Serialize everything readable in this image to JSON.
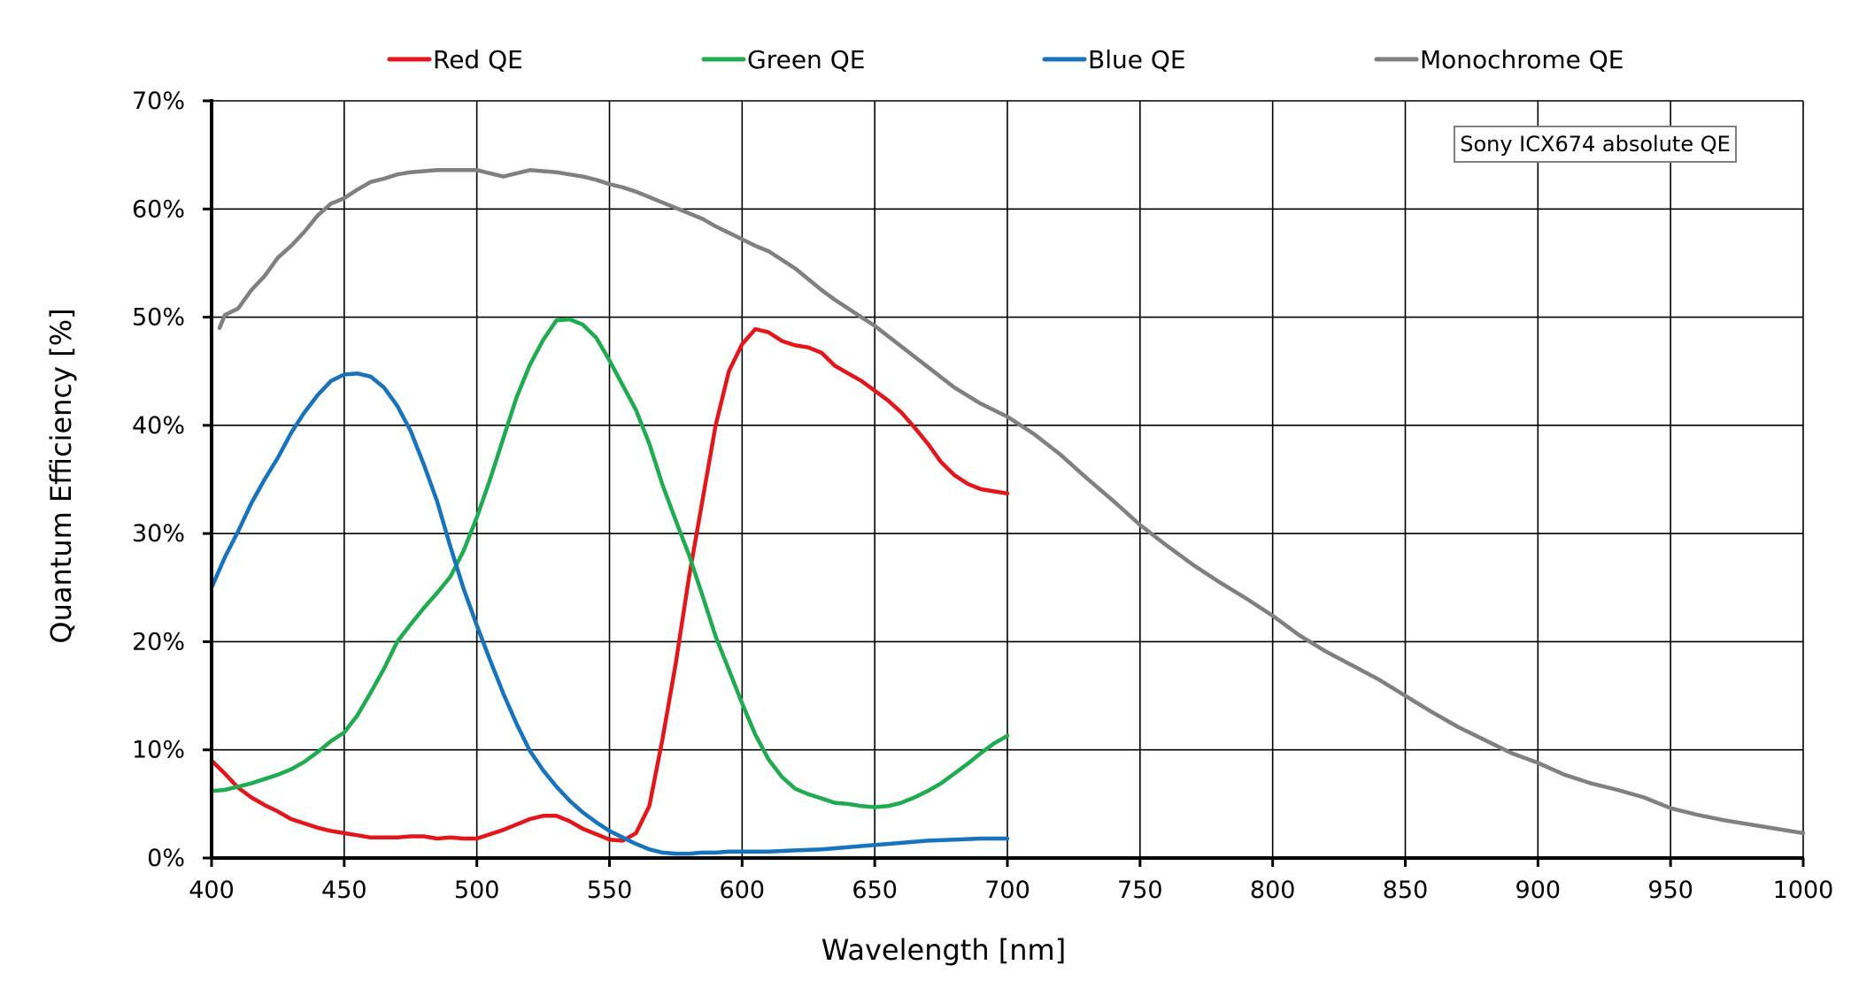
{
  "chart_data": {
    "type": "line",
    "title": "",
    "xlabel": "Wavelength [nm]",
    "ylabel": "Quantum Efficiency [%]",
    "xlim": [
      400,
      1000
    ],
    "ylim": [
      0,
      70
    ],
    "x_ticks": [
      400,
      450,
      500,
      550,
      600,
      650,
      700,
      750,
      800,
      850,
      900,
      950,
      1000
    ],
    "x_tick_labels": [
      "400",
      "450",
      "500",
      "550",
      "600",
      "650",
      "700",
      "750",
      "800",
      "850",
      "900",
      "950",
      "1000"
    ],
    "y_ticks": [
      0,
      10,
      20,
      30,
      40,
      50,
      60,
      70
    ],
    "y_tick_labels": [
      "0%",
      "10%",
      "20%",
      "30%",
      "40%",
      "50%",
      "60%",
      "70%"
    ],
    "grid": true,
    "legend_position": "top",
    "annotation": "Sony ICX674 absolute QE",
    "series": [
      {
        "name": "Red QE",
        "color": "#e3161b",
        "points": [
          [
            400,
            9
          ],
          [
            405,
            7.8
          ],
          [
            410,
            6.5
          ],
          [
            415,
            5.6
          ],
          [
            420,
            4.9
          ],
          [
            425,
            4.3
          ],
          [
            430,
            3.6
          ],
          [
            435,
            3.2
          ],
          [
            440,
            2.8
          ],
          [
            445,
            2.5
          ],
          [
            450,
            2.3
          ],
          [
            455,
            2.1
          ],
          [
            460,
            1.9
          ],
          [
            465,
            1.9
          ],
          [
            470,
            1.9
          ],
          [
            475,
            2.0
          ],
          [
            480,
            2.0
          ],
          [
            485,
            1.8
          ],
          [
            490,
            1.9
          ],
          [
            495,
            1.8
          ],
          [
            500,
            1.8
          ],
          [
            505,
            2.2
          ],
          [
            510,
            2.6
          ],
          [
            515,
            3.1
          ],
          [
            520,
            3.6
          ],
          [
            525,
            3.9
          ],
          [
            530,
            3.9
          ],
          [
            535,
            3.4
          ],
          [
            540,
            2.7
          ],
          [
            545,
            2.2
          ],
          [
            550,
            1.7
          ],
          [
            555,
            1.6
          ],
          [
            560,
            2.3
          ],
          [
            565,
            4.8
          ],
          [
            570,
            11
          ],
          [
            575,
            18
          ],
          [
            580,
            26
          ],
          [
            585,
            33
          ],
          [
            590,
            40
          ],
          [
            595,
            45
          ],
          [
            600,
            47.5
          ],
          [
            605,
            48.9
          ],
          [
            610,
            48.6
          ],
          [
            615,
            47.8
          ],
          [
            620,
            47.4
          ],
          [
            625,
            47.2
          ],
          [
            630,
            46.7
          ],
          [
            635,
            45.5
          ],
          [
            640,
            44.8
          ],
          [
            645,
            44.1
          ],
          [
            650,
            43.2
          ],
          [
            655,
            42.3
          ],
          [
            660,
            41.2
          ],
          [
            665,
            39.8
          ],
          [
            670,
            38.3
          ],
          [
            675,
            36.6
          ],
          [
            680,
            35.4
          ],
          [
            685,
            34.6
          ],
          [
            690,
            34.1
          ],
          [
            695,
            33.9
          ],
          [
            700,
            33.7
          ]
        ]
      },
      {
        "name": "Green QE",
        "color": "#1fab4f",
        "points": [
          [
            400,
            6.2
          ],
          [
            405,
            6.3
          ],
          [
            410,
            6.6
          ],
          [
            415,
            6.9
          ],
          [
            420,
            7.3
          ],
          [
            425,
            7.7
          ],
          [
            430,
            8.2
          ],
          [
            435,
            8.9
          ],
          [
            440,
            9.8
          ],
          [
            445,
            10.8
          ],
          [
            450,
            11.6
          ],
          [
            455,
            13.2
          ],
          [
            460,
            15.3
          ],
          [
            465,
            17.5
          ],
          [
            470,
            20
          ],
          [
            475,
            21.6
          ],
          [
            480,
            23.1
          ],
          [
            485,
            24.5
          ],
          [
            490,
            26.0
          ],
          [
            495,
            28.4
          ],
          [
            500,
            31.5
          ],
          [
            505,
            35
          ],
          [
            510,
            38.8
          ],
          [
            515,
            42.6
          ],
          [
            520,
            45.6
          ],
          [
            525,
            47.9
          ],
          [
            530,
            49.7
          ],
          [
            535,
            49.8
          ],
          [
            540,
            49.3
          ],
          [
            545,
            48.1
          ],
          [
            550,
            46.0
          ],
          [
            555,
            43.7
          ],
          [
            560,
            41.4
          ],
          [
            565,
            38.3
          ],
          [
            570,
            34.5
          ],
          [
            575,
            31.2
          ],
          [
            580,
            28
          ],
          [
            585,
            24.3
          ],
          [
            590,
            20.5
          ],
          [
            595,
            17.4
          ],
          [
            600,
            14.3
          ],
          [
            605,
            11.4
          ],
          [
            610,
            9.1
          ],
          [
            615,
            7.5
          ],
          [
            620,
            6.4
          ],
          [
            625,
            5.9
          ],
          [
            630,
            5.5
          ],
          [
            635,
            5.1
          ],
          [
            640,
            5.0
          ],
          [
            645,
            4.8
          ],
          [
            650,
            4.7
          ],
          [
            655,
            4.8
          ],
          [
            660,
            5.1
          ],
          [
            665,
            5.6
          ],
          [
            670,
            6.2
          ],
          [
            675,
            6.9
          ],
          [
            680,
            7.8
          ],
          [
            685,
            8.7
          ],
          [
            690,
            9.7
          ],
          [
            695,
            10.6
          ],
          [
            700,
            11.3
          ]
        ]
      },
      {
        "name": "Blue QE",
        "color": "#1673bc",
        "points": [
          [
            400,
            25
          ],
          [
            405,
            27.8
          ],
          [
            410,
            30.2
          ],
          [
            415,
            32.8
          ],
          [
            420,
            35
          ],
          [
            425,
            37
          ],
          [
            430,
            39.3
          ],
          [
            435,
            41.2
          ],
          [
            440,
            42.8
          ],
          [
            445,
            44.1
          ],
          [
            450,
            44.7
          ],
          [
            455,
            44.8
          ],
          [
            460,
            44.5
          ],
          [
            465,
            43.5
          ],
          [
            470,
            41.8
          ],
          [
            475,
            39.5
          ],
          [
            480,
            36.4
          ],
          [
            485,
            33
          ],
          [
            490,
            28.8
          ],
          [
            495,
            24.9
          ],
          [
            500,
            21.5
          ],
          [
            505,
            18.3
          ],
          [
            510,
            15.2
          ],
          [
            515,
            12.4
          ],
          [
            520,
            9.9
          ],
          [
            525,
            8.1
          ],
          [
            530,
            6.6
          ],
          [
            535,
            5.3
          ],
          [
            540,
            4.2
          ],
          [
            545,
            3.3
          ],
          [
            550,
            2.5
          ],
          [
            555,
            1.9
          ],
          [
            560,
            1.3
          ],
          [
            565,
            0.8
          ],
          [
            570,
            0.5
          ],
          [
            575,
            0.4
          ],
          [
            580,
            0.4
          ],
          [
            585,
            0.5
          ],
          [
            590,
            0.5
          ],
          [
            595,
            0.6
          ],
          [
            600,
            0.6
          ],
          [
            610,
            0.6
          ],
          [
            620,
            0.7
          ],
          [
            630,
            0.8
          ],
          [
            640,
            1.0
          ],
          [
            650,
            1.2
          ],
          [
            660,
            1.4
          ],
          [
            670,
            1.6
          ],
          [
            680,
            1.7
          ],
          [
            690,
            1.8
          ],
          [
            700,
            1.8
          ]
        ]
      },
      {
        "name": "Monochrome QE",
        "color": "#808080",
        "points": [
          [
            403,
            49
          ],
          [
            405,
            50.2
          ],
          [
            410,
            50.8
          ],
          [
            415,
            52.5
          ],
          [
            420,
            53.8
          ],
          [
            425,
            55.5
          ],
          [
            430,
            56.6
          ],
          [
            435,
            57.9
          ],
          [
            440,
            59.4
          ],
          [
            445,
            60.5
          ],
          [
            450,
            61
          ],
          [
            455,
            61.8
          ],
          [
            460,
            62.5
          ],
          [
            465,
            62.8
          ],
          [
            470,
            63.2
          ],
          [
            475,
            63.4
          ],
          [
            480,
            63.5
          ],
          [
            485,
            63.6
          ],
          [
            490,
            63.6
          ],
          [
            495,
            63.6
          ],
          [
            500,
            63.6
          ],
          [
            505,
            63.3
          ],
          [
            510,
            63.0
          ],
          [
            515,
            63.3
          ],
          [
            520,
            63.6
          ],
          [
            525,
            63.5
          ],
          [
            530,
            63.4
          ],
          [
            535,
            63.2
          ],
          [
            540,
            63.0
          ],
          [
            545,
            62.7
          ],
          [
            550,
            62.3
          ],
          [
            555,
            62.0
          ],
          [
            560,
            61.6
          ],
          [
            565,
            61.1
          ],
          [
            570,
            60.6
          ],
          [
            575,
            60.1
          ],
          [
            580,
            59.6
          ],
          [
            585,
            59.1
          ],
          [
            590,
            58.4
          ],
          [
            595,
            57.8
          ],
          [
            600,
            57.2
          ],
          [
            605,
            56.6
          ],
          [
            610,
            56.1
          ],
          [
            615,
            55.3
          ],
          [
            620,
            54.5
          ],
          [
            625,
            53.5
          ],
          [
            630,
            52.5
          ],
          [
            635,
            51.6
          ],
          [
            640,
            50.8
          ],
          [
            645,
            50
          ],
          [
            650,
            49.2
          ],
          [
            660,
            47.3
          ],
          [
            670,
            45.4
          ],
          [
            680,
            43.5
          ],
          [
            690,
            42
          ],
          [
            700,
            40.8
          ],
          [
            710,
            39.2
          ],
          [
            720,
            37.3
          ],
          [
            730,
            35.1
          ],
          [
            740,
            33
          ],
          [
            750,
            30.8
          ],
          [
            760,
            28.9
          ],
          [
            770,
            27.1
          ],
          [
            780,
            25.5
          ],
          [
            790,
            24
          ],
          [
            800,
            22.4
          ],
          [
            810,
            20.6
          ],
          [
            820,
            19.1
          ],
          [
            830,
            17.8
          ],
          [
            840,
            16.5
          ],
          [
            850,
            15
          ],
          [
            860,
            13.5
          ],
          [
            870,
            12.1
          ],
          [
            880,
            10.9
          ],
          [
            890,
            9.7
          ],
          [
            900,
            8.8
          ],
          [
            910,
            7.7
          ],
          [
            920,
            6.9
          ],
          [
            930,
            6.3
          ],
          [
            940,
            5.6
          ],
          [
            950,
            4.6
          ],
          [
            960,
            4.0
          ],
          [
            970,
            3.5
          ],
          [
            980,
            3.1
          ],
          [
            990,
            2.7
          ],
          [
            1000,
            2.3
          ]
        ]
      }
    ]
  }
}
